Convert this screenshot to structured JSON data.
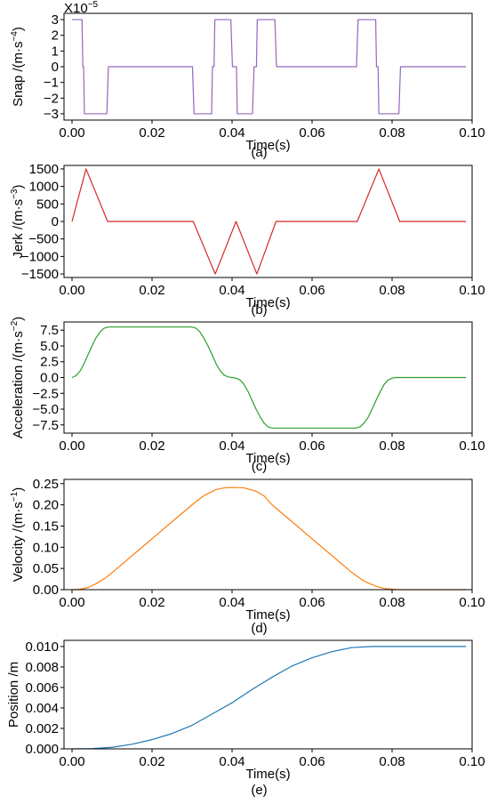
{
  "chart_data": [
    {
      "type": "line",
      "panel": "(a)",
      "exponent_label": "X10",
      "exponent_sup": "−5",
      "ylabel": "Snap /(m·s",
      "ylabel_sup": "−4",
      "ylabel_close": ")",
      "xlabel": "Time(s)",
      "xlim": [
        -0.002,
        0.1
      ],
      "ylim": [
        -3.4,
        3.4
      ],
      "xticks": [
        0.0,
        0.02,
        0.04,
        0.06,
        0.08,
        0.1
      ],
      "xtick_labels": [
        "0.00",
        "0.02",
        "0.04",
        "0.06",
        "0.08",
        "0.10"
      ],
      "yticks": [
        3,
        2,
        1,
        0,
        -1,
        -2,
        -3
      ],
      "ytick_labels": [
        "3",
        "2",
        "1",
        "0",
        "−1",
        "−2",
        "−3"
      ],
      "color": "#9467bd",
      "series": [
        {
          "x": [
            0,
            0.0025,
            0.0027,
            0.0029,
            0.0031,
            0.0087,
            0.0091,
            0.0301,
            0.0305,
            0.0349,
            0.0351,
            0.0355,
            0.0357,
            0.0397,
            0.0401,
            0.0411,
            0.0413,
            0.0451,
            0.0455,
            0.0461,
            0.0463,
            0.0507,
            0.0511,
            0.0711,
            0.0715,
            0.0759,
            0.0761,
            0.0765,
            0.0767,
            0.0817,
            0.0821,
            0.0985
          ],
          "y": [
            3,
            3,
            0,
            0,
            -3,
            -3,
            0,
            0,
            -3,
            -3,
            0,
            0,
            3,
            3,
            0,
            0,
            -3,
            -3,
            0,
            0,
            3,
            3,
            0,
            0,
            3,
            3,
            0,
            0,
            -3,
            -3,
            0,
            0
          ]
        }
      ]
    },
    {
      "type": "line",
      "panel": "(b)",
      "ylabel": "Jerk /(m·s",
      "ylabel_sup": "−3",
      "ylabel_close": ")",
      "xlabel": "Time(s)",
      "xlim": [
        -0.002,
        0.1
      ],
      "ylim": [
        -1600,
        1600
      ],
      "xticks": [
        0.0,
        0.02,
        0.04,
        0.06,
        0.08,
        0.1
      ],
      "xtick_labels": [
        "0.00",
        "0.02",
        "0.04",
        "0.06",
        "0.08",
        "0.10"
      ],
      "yticks": [
        1500,
        1000,
        500,
        0,
        -500,
        -1000,
        -1500
      ],
      "ytick_labels": [
        "1500",
        "1000",
        "500",
        "0",
        "−500",
        "−1000",
        "−1500"
      ],
      "color": "#d62728",
      "series": [
        {
          "x": [
            0,
            0.0035,
            0.0089,
            0.0303,
            0.0358,
            0.041,
            0.0462,
            0.051,
            0.0713,
            0.0767,
            0.0819,
            0.0985
          ],
          "y": [
            0,
            1500,
            0,
            0,
            -1500,
            0,
            -1500,
            0,
            0,
            1500,
            0,
            0
          ]
        }
      ]
    },
    {
      "type": "line",
      "panel": "(c)",
      "ylabel": "Acceleration /(m·s",
      "ylabel_sup": "−2",
      "ylabel_close": ")",
      "xlabel": "Time(s)",
      "xlim": [
        -0.002,
        0.1
      ],
      "ylim": [
        -8.8,
        8.8
      ],
      "xticks": [
        0.0,
        0.02,
        0.04,
        0.06,
        0.08,
        0.1
      ],
      "xtick_labels": [
        "0.00",
        "0.02",
        "0.04",
        "0.06",
        "0.08",
        "0.10"
      ],
      "yticks": [
        7.5,
        5.0,
        2.5,
        0.0,
        -2.5,
        -5.0,
        -7.5
      ],
      "ytick_labels": [
        "7.5",
        "5.0",
        "2.5",
        "0.0",
        "−2.5",
        "−5.0",
        "−7.5"
      ],
      "color": "#2ca02c",
      "series": [
        {
          "x": [
            0,
            0.001,
            0.002,
            0.003,
            0.004,
            0.005,
            0.006,
            0.007,
            0.008,
            0.009,
            0.03,
            0.031,
            0.032,
            0.033,
            0.034,
            0.035,
            0.036,
            0.037,
            0.038,
            0.039,
            0.04,
            0.041,
            0.042,
            0.043,
            0.044,
            0.045,
            0.046,
            0.047,
            0.048,
            0.049,
            0.05,
            0.051,
            0.071,
            0.072,
            0.073,
            0.074,
            0.075,
            0.076,
            0.077,
            0.078,
            0.079,
            0.08,
            0.081,
            0.082,
            0.0985
          ],
          "y": [
            0,
            0.3,
            1.0,
            2.2,
            3.6,
            5.0,
            6.3,
            7.2,
            7.8,
            8.0,
            8.0,
            7.8,
            7.2,
            6.2,
            5.0,
            3.6,
            2.2,
            1.1,
            0.4,
            0.1,
            0,
            -0.1,
            -0.4,
            -1.1,
            -2.2,
            -3.6,
            -5.0,
            -6.2,
            -7.2,
            -7.8,
            -8.0,
            -8.0,
            -8.0,
            -7.8,
            -7.2,
            -6.3,
            -5.0,
            -3.6,
            -2.3,
            -1.1,
            -0.4,
            -0.1,
            0,
            0,
            0
          ]
        }
      ]
    },
    {
      "type": "line",
      "panel": "(d)",
      "ylabel": "Velocity /(m·s",
      "ylabel_sup": "−1",
      "ylabel_close": ")",
      "xlabel": "Time(s)",
      "xlim": [
        -0.002,
        0.1
      ],
      "ylim": [
        0,
        0.26
      ],
      "xticks": [
        0.0,
        0.02,
        0.04,
        0.06,
        0.08,
        0.1
      ],
      "xtick_labels": [
        "0.00",
        "0.02",
        "0.04",
        "0.06",
        "0.08",
        "0.10"
      ],
      "yticks": [
        0.25,
        0.2,
        0.15,
        0.1,
        0.05,
        0.0
      ],
      "ytick_labels": [
        "0.25",
        "0.20",
        "0.15",
        "0.10",
        "0.05",
        "0.00"
      ],
      "color": "#ff7f0e",
      "series": [
        {
          "x": [
            0,
            0.002,
            0.004,
            0.006,
            0.008,
            0.01,
            0.02,
            0.03,
            0.033,
            0.036,
            0.038,
            0.04,
            0.043,
            0.046,
            0.048,
            0.05,
            0.06,
            0.07,
            0.073,
            0.076,
            0.078,
            0.08,
            0.082,
            0.0985
          ],
          "y": [
            0,
            0.001,
            0.005,
            0.014,
            0.025,
            0.04,
            0.12,
            0.2,
            0.222,
            0.236,
            0.24,
            0.241,
            0.24,
            0.232,
            0.221,
            0.2,
            0.12,
            0.04,
            0.02,
            0.008,
            0.003,
            0.001,
            0,
            0
          ]
        }
      ]
    },
    {
      "type": "line",
      "panel": "(e)",
      "ylabel": "Position /m",
      "xlabel": "Time(s)",
      "xlim": [
        -0.002,
        0.1
      ],
      "ylim": [
        0,
        0.0106
      ],
      "xticks": [
        0.0,
        0.02,
        0.04,
        0.06,
        0.08,
        0.1
      ],
      "xtick_labels": [
        "0.00",
        "0.02",
        "0.04",
        "0.06",
        "0.08",
        "0.10"
      ],
      "yticks": [
        0.01,
        0.008,
        0.006,
        0.004,
        0.002,
        0.0
      ],
      "ytick_labels": [
        "0.010",
        "0.008",
        "0.006",
        "0.004",
        "0.002",
        "0.000"
      ],
      "color": "#1f77b4",
      "series": [
        {
          "x": [
            0,
            0.005,
            0.01,
            0.015,
            0.02,
            0.025,
            0.03,
            0.035,
            0.04,
            0.045,
            0.05,
            0.055,
            0.06,
            0.065,
            0.07,
            0.075,
            0.08,
            0.085,
            0.09,
            0.0985
          ],
          "y": [
            0,
            2e-05,
            0.00015,
            0.00045,
            0.0009,
            0.0015,
            0.0023,
            0.0034,
            0.0045,
            0.0058,
            0.007,
            0.0081,
            0.0089,
            0.0095,
            0.0099,
            0.01,
            0.01,
            0.01,
            0.01,
            0.01
          ]
        }
      ]
    }
  ]
}
